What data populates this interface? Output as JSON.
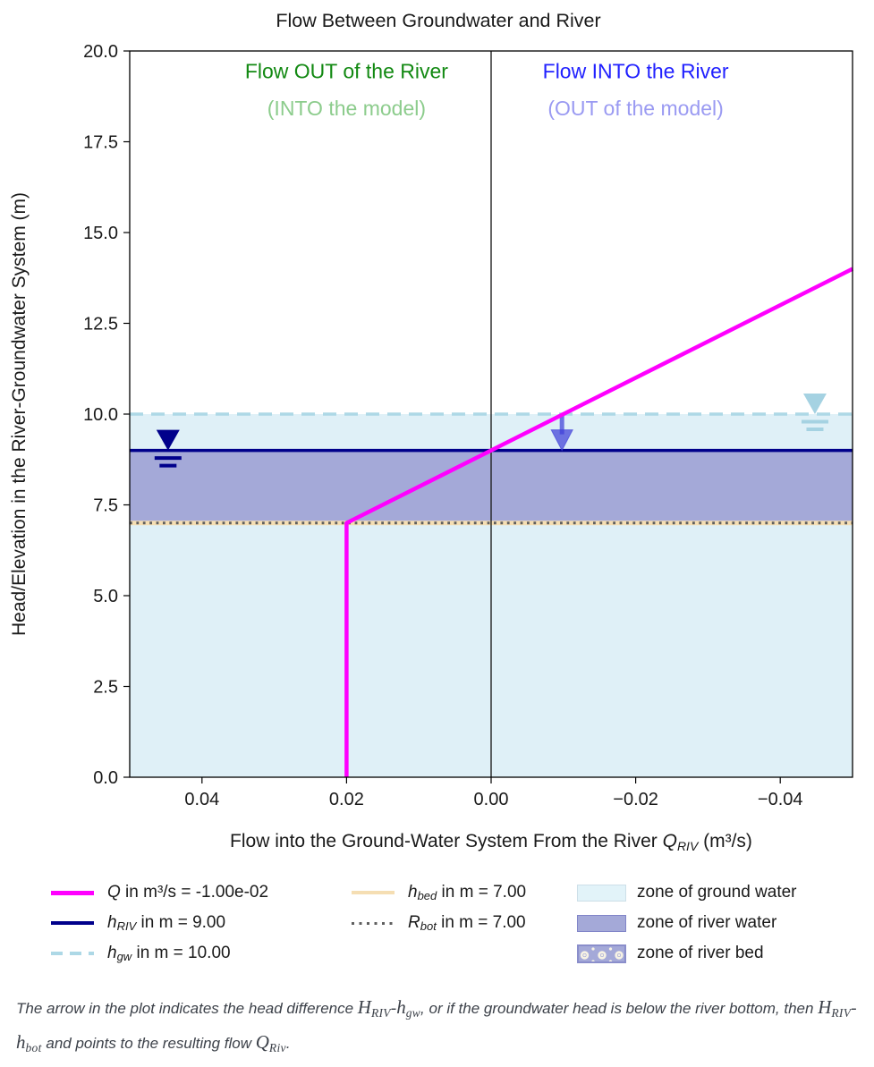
{
  "figure": {
    "title": "Flow Between Groundwater and River",
    "ylabel": "Head/Elevation in the River-Groundwater System (m)",
    "xlabel": {
      "prefix": "Flow into the Ground-Water System From the River ",
      "var": "Q",
      "sub": "RIV",
      "suffix": " (m³/s)"
    }
  },
  "chart_data": {
    "type": "line",
    "title": "Flow Between Groundwater and River",
    "xlabel": "Flow into the Ground-Water System From the River Q_RIV (m³/s)",
    "ylabel": "Head/Elevation in the River-Groundwater System (m)",
    "xlim": [
      0.05,
      -0.05
    ],
    "x_axis_inverted": true,
    "ylim": [
      0,
      20
    ],
    "grid": false,
    "xticks": {
      "values": [
        0.04,
        0.02,
        0.0,
        -0.02,
        -0.04
      ],
      "labels": [
        "0.04",
        "0.02",
        "0.00",
        "−0.02",
        "−0.04"
      ]
    },
    "yticks": {
      "values": [
        20,
        17.5,
        15,
        12.5,
        10,
        7.5,
        5,
        2.5,
        0
      ],
      "labels": [
        "20.0",
        "17.5",
        "15.0",
        "12.5",
        "10.0",
        "7.5",
        "5.0",
        "2.5",
        "0.0"
      ]
    },
    "zones": [
      {
        "name": "zone of ground water",
        "y0": 0,
        "y1": 10,
        "color": "#dff0f7"
      },
      {
        "name": "zone of river water",
        "y0": 7,
        "y1": 9,
        "color": "#a4a9d8"
      },
      {
        "name": "zone of river bed",
        "y0": 7,
        "y1": 7,
        "color": "#a4a9d8"
      }
    ],
    "hlines": [
      {
        "name": "h_bed in m = 7.00",
        "y": 7,
        "color": "#f5deb3",
        "style": "solid",
        "width": 5
      },
      {
        "name": "R_bot in m = 7.00",
        "y": 7,
        "color": "#5f5f5f",
        "style": "dotted",
        "width": 3
      },
      {
        "name": "h_RIV in m = 9.00",
        "y": 9,
        "color": "#00008b",
        "style": "solid",
        "width": 3.5
      },
      {
        "name": "h_gw in m = 10.00",
        "y": 10,
        "color": "#add8e6",
        "style": "dashed",
        "width": 3.5
      }
    ],
    "vlines": [
      {
        "name": "zero flow axis",
        "x": 0,
        "color": "#222222",
        "width": 1.4
      }
    ],
    "series": [
      {
        "name": "Q in m³/s = -1.00e-02",
        "color": "#ff00ff",
        "width": 4.5,
        "points": [
          [
            0.02,
            0
          ],
          [
            0.02,
            7
          ],
          [
            -0.05,
            14
          ]
        ]
      }
    ],
    "head_markers": [
      {
        "name": "river head marker",
        "x": 0.0447,
        "y": 9,
        "color": "#00008b"
      },
      {
        "name": "groundwater head marker",
        "x": -0.0448,
        "y": 10,
        "color": "#a5d2e2"
      }
    ],
    "arrow": {
      "name": "head difference arrow",
      "x": -0.0098,
      "from_y": 10,
      "to_y": 9,
      "color": "#4040d8",
      "opacity": 0.72
    },
    "annotations": [
      {
        "text": "Flow OUT of the River",
        "x": 0.02,
        "y": 19.45,
        "color": "#128912",
        "size": 23
      },
      {
        "text": "(INTO the model)",
        "x": 0.02,
        "y": 18.42,
        "color": "#8ccc8c",
        "size": 23
      },
      {
        "text": "Flow INTO the River",
        "x": -0.02,
        "y": 19.45,
        "color": "#2121ff",
        "size": 23
      },
      {
        "text": "(OUT of the model)",
        "x": -0.02,
        "y": 18.42,
        "color": "#9a9af2",
        "size": 23
      }
    ],
    "q_value_label": "-1.00e-02"
  },
  "legend": {
    "entries": [
      {
        "var": "Q",
        "sub": "",
        "rest": " in m³/s = -1.00e-02",
        "swatch": "line",
        "style": "solid",
        "color": "#ff00ff",
        "h": 5
      },
      {
        "var": "h",
        "sub": "RIV",
        "rest": " in m = 9.00",
        "swatch": "line",
        "style": "solid",
        "color": "#00008b",
        "h": 4
      },
      {
        "var": "h",
        "sub": "gw",
        "rest": " in m = 10.00",
        "swatch": "line",
        "style": "dashed",
        "color": "#add8e6",
        "h": 4
      },
      {
        "var": "h",
        "sub": "bed",
        "rest": " in m = 7.00",
        "swatch": "line",
        "style": "solid",
        "color": "#f5deb3",
        "h": 4
      },
      {
        "var": "R",
        "sub": "bot",
        "rest": " in m = 7.00",
        "swatch": "line",
        "style": "dotted",
        "color": "#5f5f5f",
        "h": 3
      },
      {
        "var": "",
        "sub": "",
        "rest": "zone of ground water",
        "swatch": "patch",
        "color": "#e2f3f9",
        "border": "#cddfe8"
      },
      {
        "var": "",
        "sub": "",
        "rest": "zone of river water",
        "swatch": "patch",
        "color": "#a4a9d8",
        "border": "#8185c8"
      },
      {
        "var": "",
        "sub": "",
        "rest": "zone of river bed",
        "swatch": "patch-hatched",
        "color": "#a4a9d8",
        "hatch_color": "#f7f3e4"
      }
    ]
  },
  "caption": {
    "parts": [
      {
        "text": "The arrow in the plot indicates the head difference ",
        "kind": "plain"
      },
      {
        "text": "H",
        "kind": "var"
      },
      {
        "text": "RIV",
        "kind": "sub"
      },
      {
        "text": "-",
        "kind": "dash"
      },
      {
        "text": "h",
        "kind": "var"
      },
      {
        "text": "gw",
        "kind": "sub"
      },
      {
        "text": ", or if the groundwater head is below the river bottom, then ",
        "kind": "plain"
      },
      {
        "text": "H",
        "kind": "var"
      },
      {
        "text": "RIV",
        "kind": "sub"
      },
      {
        "text": "-",
        "kind": "dash"
      },
      {
        "text": "h",
        "kind": "var"
      },
      {
        "text": "bot",
        "kind": "sub"
      },
      {
        "text": " and points to the resulting flow ",
        "kind": "plain"
      },
      {
        "text": "Q",
        "kind": "var"
      },
      {
        "text": "Riv",
        "kind": "sub"
      },
      {
        "text": ".",
        "kind": "plain"
      }
    ]
  },
  "colors": {
    "q_line": "#ff00ff",
    "h_riv": "#00008b",
    "h_gw": "#add8e6",
    "h_bed": "#f5deb3",
    "r_bot": "#5f5f5f",
    "zone_ground_water": "#dff0f7",
    "zone_river_water": "#a4a9d8",
    "flow_out_text": "#128912",
    "flow_out_subtext": "#8ccc8c",
    "flow_in_text": "#2121ff",
    "flow_in_subtext": "#9a9af2",
    "arrow": "#4040d8"
  }
}
